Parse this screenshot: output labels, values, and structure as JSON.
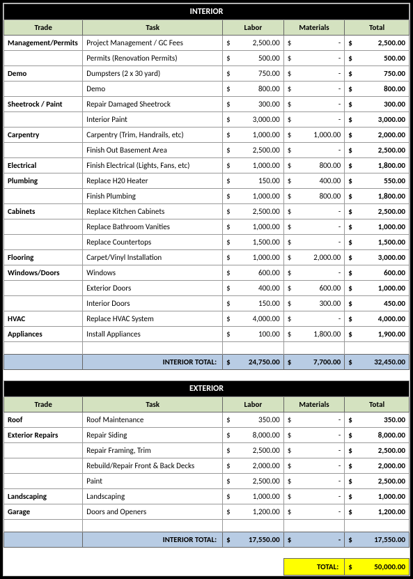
{
  "colors": {
    "header_bg": "#d4e2c0",
    "subtotal_bg": "#b8cce4",
    "grand_bg": "#ffff00",
    "section_bg": "#000000",
    "border": "#999999"
  },
  "columns": {
    "trade": "Trade",
    "task": "Task",
    "labor": "Labor",
    "materials": "Materials",
    "total": "Total"
  },
  "sections": [
    {
      "title": "INTERIOR",
      "subtotal_label": "INTERIOR TOTAL:",
      "subtotal": {
        "labor": "24,750.00",
        "materials": "7,700.00",
        "total": "32,450.00"
      },
      "rows": [
        {
          "trade": "Management/Permits",
          "task": "Project Management / GC Fees",
          "labor": "2,500.00",
          "materials": "-",
          "total": "2,500.00"
        },
        {
          "trade": "",
          "task": "Permits (Renovation Permits)",
          "labor": "500.00",
          "materials": "-",
          "total": "500.00"
        },
        {
          "trade": "Demo",
          "task": "Dumpsters (2 x 30 yard)",
          "labor": "750.00",
          "materials": "-",
          "total": "750.00"
        },
        {
          "trade": "",
          "task": "Demo",
          "labor": "800.00",
          "materials": "-",
          "total": "800.00"
        },
        {
          "trade": "Sheetrock / Paint",
          "task": "Repair Damaged Sheetrock",
          "labor": "300.00",
          "materials": "-",
          "total": "300.00"
        },
        {
          "trade": "",
          "task": "Interior Paint",
          "labor": "3,000.00",
          "materials": "-",
          "total": "3,000.00"
        },
        {
          "trade": "Carpentry",
          "task": "Carpentry (Trim, Handrails, etc)",
          "labor": "1,000.00",
          "materials": "1,000.00",
          "total": "2,000.00"
        },
        {
          "trade": "",
          "task": "Finish Out Basement Area",
          "labor": "2,500.00",
          "materials": "-",
          "total": "2,500.00"
        },
        {
          "trade": "Electrical",
          "task": "Finish Electrical (Lights, Fans, etc)",
          "labor": "1,000.00",
          "materials": "800.00",
          "total": "1,800.00"
        },
        {
          "trade": "Plumbing",
          "task": "Replace H20 Heater",
          "labor": "150.00",
          "materials": "400.00",
          "total": "550.00"
        },
        {
          "trade": "",
          "task": "Finish Plumbing",
          "labor": "1,000.00",
          "materials": "800.00",
          "total": "1,800.00"
        },
        {
          "trade": "Cabinets",
          "task": "Replace Kitchen Cabinets",
          "labor": "2,500.00",
          "materials": "-",
          "total": "2,500.00"
        },
        {
          "trade": "",
          "task": "Replace Bathroom Vanities",
          "labor": "1,000.00",
          "materials": "-",
          "total": "1,000.00"
        },
        {
          "trade": "",
          "task": "Replace Countertops",
          "labor": "1,500.00",
          "materials": "-",
          "total": "1,500.00"
        },
        {
          "trade": "Flooring",
          "task": "Carpet/Vinyl Installation",
          "labor": "1,000.00",
          "materials": "2,000.00",
          "total": "3,000.00"
        },
        {
          "trade": "Windows/Doors",
          "task": "Windows",
          "labor": "600.00",
          "materials": "-",
          "total": "600.00"
        },
        {
          "trade": "",
          "task": "Exterior Doors",
          "labor": "400.00",
          "materials": "600.00",
          "total": "1,000.00"
        },
        {
          "trade": "",
          "task": "Interior Doors",
          "labor": "150.00",
          "materials": "300.00",
          "total": "450.00"
        },
        {
          "trade": "HVAC",
          "task": "Replace HVAC System",
          "labor": "4,000.00",
          "materials": "-",
          "total": "4,000.00"
        },
        {
          "trade": "Appliances",
          "task": "Install Appliances",
          "labor": "100.00",
          "materials": "1,800.00",
          "total": "1,900.00"
        }
      ]
    },
    {
      "title": "EXTERIOR",
      "subtotal_label": "INTERIOR TOTAL:",
      "subtotal": {
        "labor": "17,550.00",
        "materials": "-",
        "total": "17,550.00"
      },
      "rows": [
        {
          "trade": "Roof",
          "task": "Roof Maintenance",
          "labor": "350.00",
          "materials": "-",
          "total": "350.00"
        },
        {
          "trade": "Exterior Repairs",
          "task": "Repair Siding",
          "labor": "8,000.00",
          "materials": "-",
          "total": "8,000.00"
        },
        {
          "trade": "",
          "task": "Repair Framing, Trim",
          "labor": "2,500.00",
          "materials": "-",
          "total": "2,500.00"
        },
        {
          "trade": "",
          "task": "Rebuild/Repair Front & Back Decks",
          "labor": "2,000.00",
          "materials": "-",
          "total": "2,000.00"
        },
        {
          "trade": "",
          "task": "Paint",
          "labor": "2,500.00",
          "materials": "-",
          "total": "2,500.00"
        },
        {
          "trade": "Landscaping",
          "task": "Landscaping",
          "labor": "1,000.00",
          "materials": "-",
          "total": "1,000.00"
        },
        {
          "trade": "Garage",
          "task": "Doors and Openers",
          "labor": "1,200.00",
          "materials": "-",
          "total": "1,200.00"
        }
      ]
    }
  ],
  "grand": {
    "label": "TOTAL:",
    "value": "50,000.00"
  }
}
